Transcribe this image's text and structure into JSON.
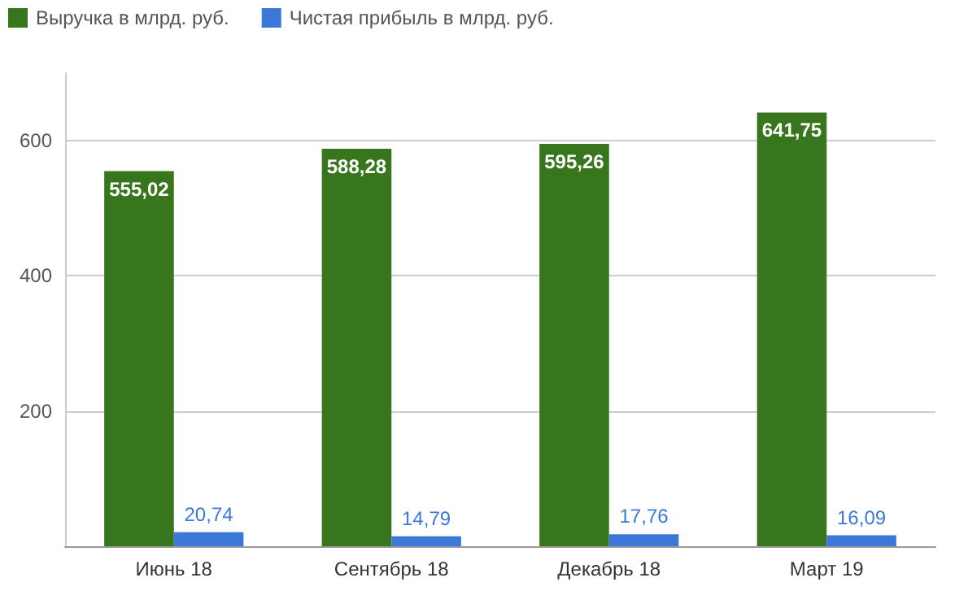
{
  "chart_data": {
    "type": "bar",
    "categories": [
      "Июнь 18",
      "Сентябрь 18",
      "Декабрь 18",
      "Март 19"
    ],
    "series": [
      {
        "name": "Выручка в млрд. руб.",
        "color": "#38761d",
        "values": [
          555.02,
          588.28,
          595.26,
          641.75
        ],
        "value_labels": [
          "555,02",
          "588,28",
          "595,26",
          "641,75"
        ]
      },
      {
        "name": "Чистая прибыль в млрд. руб.",
        "color": "#3c78d8",
        "values": [
          20.74,
          14.79,
          17.76,
          16.09
        ],
        "value_labels": [
          "20,74",
          "14,79",
          "17,76",
          "16,09"
        ]
      }
    ],
    "ylim": [
      0,
      700
    ],
    "yticks": [
      {
        "value": 0,
        "label": null
      },
      200,
      400,
      600
    ],
    "grid": "y",
    "legend": "top left"
  }
}
